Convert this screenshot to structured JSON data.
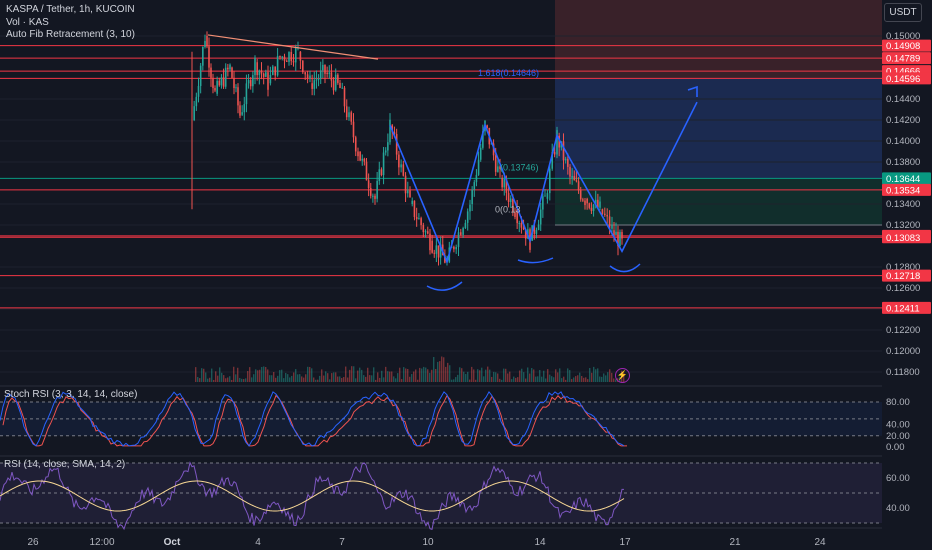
{
  "header": {
    "symbol_title": "KASPA / Tether, 1h, KUCOIN",
    "volume_label": "Vol · KAS",
    "indicator_label": "Auto Fib Retracement (3, 10)"
  },
  "currency_button": "USDT",
  "price_axis": {
    "ticks": [
      "0.15000",
      "0.14400",
      "0.14200",
      "0.14000",
      "0.13800",
      "0.13400",
      "0.13200",
      "0.12800",
      "0.12600",
      "0.12400",
      "0.12200",
      "0.12000",
      "0.11800"
    ],
    "tick_values": [
      0.15,
      0.144,
      0.142,
      0.14,
      0.138,
      0.134,
      0.132,
      0.128,
      0.126,
      0.124,
      0.122,
      0.12,
      0.118
    ],
    "badges": [
      {
        "text": "0.14908",
        "value": 0.14908,
        "color": "#f23645"
      },
      {
        "text": "0.14789",
        "value": 0.14789,
        "color": "#f23645"
      },
      {
        "text": "0.14666",
        "value": 0.14666,
        "color": "#f23645"
      },
      {
        "text": "0.14596",
        "value": 0.14596,
        "color": "#f23645"
      },
      {
        "text": "0.13644",
        "value": 0.13644,
        "color": "#089981"
      },
      {
        "text": "0.13534",
        "value": 0.13534,
        "color": "#f23645"
      },
      {
        "text": "0.13097",
        "value": 0.13097,
        "color": "#f23645"
      },
      {
        "text": "0.13083",
        "value": 0.13083,
        "color": "#f23645"
      },
      {
        "text": "0.12718",
        "value": 0.12718,
        "color": "#f23645"
      },
      {
        "text": "0.12411",
        "value": 0.12411,
        "color": "#f23645"
      }
    ]
  },
  "fib_labels": [
    {
      "text": "1.618(0.14646)",
      "value": 0.14646,
      "color": "#2962ff"
    },
    {
      "text": "(0.13746)",
      "value": 0.13746,
      "color": "#26a69a"
    },
    {
      "text": "0(0.13",
      "value": 0.1335,
      "color": "#b2b5be"
    }
  ],
  "stoch_rsi": {
    "label": "Stoch RSI (3, 3, 14, 14, close)",
    "ticks": [
      "80.00",
      "40.00",
      "20.00",
      "0.00"
    ]
  },
  "rsi": {
    "label": "RSI (14, close, SMA, 14, 2)",
    "ticks": [
      "60.00",
      "40.00"
    ]
  },
  "time_axis": {
    "labels": [
      "26",
      "12:00",
      "Oct",
      "4",
      "7",
      "10",
      "14",
      "17",
      "21",
      "24"
    ]
  },
  "colors": {
    "background": "#131722",
    "up": "#26a69a",
    "down": "#ef5350",
    "resistance": "#f23645",
    "projection": "#2962ff",
    "stop_zone": "#5a2a30",
    "target_zone": "#1e2f5c",
    "entry_zone": "#12352f",
    "rsi": "#7e57c2",
    "signal": "#ef5350",
    "stoch_k": "#2962ff",
    "trendline": "#f28f75"
  }
}
